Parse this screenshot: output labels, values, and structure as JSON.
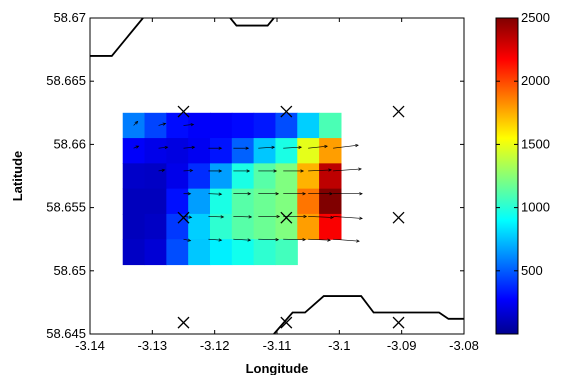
{
  "chart_data": {
    "type": "heatmap",
    "title": "",
    "xlabel": "Longitude",
    "ylabel": "Latitude",
    "xlim": [
      -3.14,
      -3.08
    ],
    "ylim": [
      58.645,
      58.67
    ],
    "x_ticks": [
      "-3.14",
      "-3.13",
      "-3.12",
      "-3.11",
      "-3.1",
      "-3.09",
      "-3.08"
    ],
    "y_ticks": [
      "58.645",
      "58.65",
      "58.655",
      "58.66",
      "58.665",
      "58.67"
    ],
    "colorbar": {
      "range": [
        0,
        2500
      ],
      "ticks": [
        "500",
        "1000",
        "1500",
        "2000",
        "2500"
      ],
      "colormap": "jet"
    },
    "grid": false,
    "markers": {
      "symbol": "x",
      "points": [
        [
          -3.125,
          58.6626
        ],
        [
          -3.1085,
          58.6626
        ],
        [
          -3.0905,
          58.6626
        ],
        [
          -3.125,
          58.6542
        ],
        [
          -3.1085,
          58.6542
        ],
        [
          -3.0905,
          58.6542
        ],
        [
          -3.125,
          58.6459
        ],
        [
          -3.1085,
          58.6459
        ],
        [
          -3.0905,
          58.6459
        ]
      ]
    },
    "coastlines": [
      [
        [
          -3.14,
          58.667
        ],
        [
          -3.1365,
          58.667
        ],
        [
          -3.1315,
          58.67
        ]
      ],
      [
        [
          -3.1175,
          58.67
        ],
        [
          -3.1165,
          58.6694
        ],
        [
          -3.1115,
          58.6694
        ],
        [
          -3.1105,
          58.67
        ]
      ],
      [
        [
          -3.1105,
          58.645
        ],
        [
          -3.1075,
          58.6467
        ],
        [
          -3.1055,
          58.6467
        ],
        [
          -3.1025,
          58.648
        ],
        [
          -3.0965,
          58.648
        ],
        [
          -3.0945,
          58.6467
        ],
        [
          -3.084,
          58.6467
        ],
        [
          -3.0825,
          58.6462
        ],
        [
          -3.08,
          58.6462
        ]
      ]
    ],
    "field": {
      "x": [
        -3.133,
        -3.1295,
        -3.126,
        -3.1225,
        -3.119,
        -3.1155,
        -3.112,
        -3.1085,
        -3.105,
        -3.1015
      ],
      "y": [
        58.6615,
        58.6595,
        58.6575,
        58.6555,
        58.6535,
        58.6515
      ],
      "values": [
        [
          620,
          480,
          340,
          300,
          300,
          330,
          370,
          500,
          820,
          1120
        ],
        [
          300,
          260,
          240,
          280,
          360,
          550,
          800,
          1000,
          1500,
          1800
        ],
        [
          180,
          170,
          260,
          420,
          700,
          1000,
          1150,
          1250,
          1750,
          2350
        ],
        [
          150,
          150,
          350,
          700,
          1000,
          1150,
          1200,
          1250,
          1900,
          2500
        ],
        [
          150,
          170,
          450,
          820,
          1050,
          1150,
          1200,
          1250,
          1800,
          2200
        ],
        [
          170,
          210,
          500,
          800,
          900,
          980,
          1050,
          1100,
          null,
          null
        ]
      ]
    },
    "vectors": {
      "x": [
        -3.133,
        -3.129,
        -3.125,
        -3.121,
        -3.117,
        -3.113,
        -3.109,
        -3.105,
        -3.101
      ],
      "y": [
        58.6615,
        58.6597,
        58.6579,
        58.6561,
        58.6543,
        58.6525
      ],
      "u": [
        [
          0.4,
          0.7,
          1.0,
          0,
          0,
          0,
          0,
          0,
          0
        ],
        [
          0.5,
          0.9,
          1.1,
          1.3,
          1.5,
          1.6,
          1.8,
          1.9,
          2.5
        ],
        [
          0,
          0.6,
          0.9,
          1.3,
          1.6,
          1.8,
          2.0,
          2.3,
          2.8
        ],
        [
          0,
          0,
          0.7,
          1.3,
          1.7,
          2.0,
          2.2,
          2.4,
          2.9
        ],
        [
          0,
          0,
          0.8,
          1.5,
          1.8,
          2.1,
          2.3,
          2.5,
          2.9
        ],
        [
          0,
          0,
          0.7,
          1.3,
          1.7,
          2.0,
          2.2,
          2.2,
          2.6
        ]
      ],
      "v": [
        [
          0.4,
          0.2,
          0.1,
          0,
          0,
          0,
          0,
          0,
          0
        ],
        [
          0.2,
          0.1,
          0.1,
          0,
          0,
          0.1,
          0.1,
          0.2,
          0.3
        ],
        [
          0,
          0.1,
          0.05,
          0,
          0,
          0,
          0,
          0.1,
          0.2
        ],
        [
          0,
          0,
          0,
          -0.05,
          0,
          0,
          0,
          0,
          0
        ],
        [
          0,
          0,
          -0.1,
          -0.05,
          -0.05,
          0,
          0,
          -0.1,
          -0.2
        ],
        [
          0,
          0,
          -0.15,
          -0.1,
          -0.1,
          -0.05,
          -0.05,
          -0.1,
          -0.2
        ]
      ]
    }
  }
}
